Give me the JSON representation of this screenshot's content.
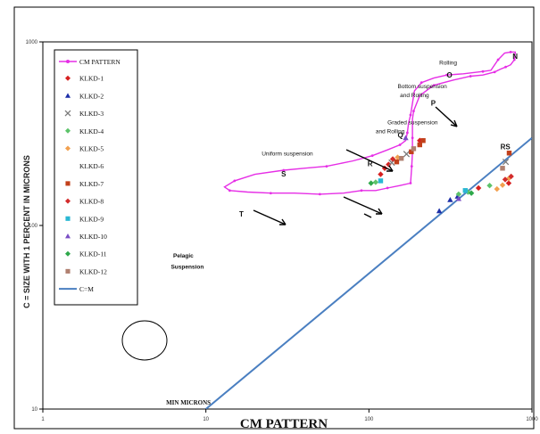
{
  "chart_data": {
    "type": "scatter",
    "xlabel": "CM PATTERN",
    "ylabel": "C = SIZE WITH 1 PERCENT IN MICRONS",
    "x_scale": "log",
    "y_scale": "log",
    "xlim": [
      1,
      1000
    ],
    "ylim": [
      10,
      1000
    ],
    "x_ticks": [
      "1",
      "10",
      "100",
      "1000"
    ],
    "y_ticks": [
      "10",
      "100",
      "1000"
    ],
    "legend_position": "top-left",
    "colors": {
      "cm_pattern": "#e62ee6",
      "c_eq_m": "#4a7fc1",
      "axis": "#000000"
    },
    "cm_pattern": {
      "name": "CM PATTERN",
      "points": [
        [
          180,
          170
        ],
        [
          155,
          165
        ],
        [
          130,
          160
        ],
        [
          110,
          155
        ],
        [
          90,
          155
        ],
        [
          70,
          150
        ],
        [
          50,
          148
        ],
        [
          35,
          150
        ],
        [
          25,
          150
        ],
        [
          18,
          152
        ],
        [
          14,
          155
        ],
        [
          13,
          162
        ],
        [
          15,
          175
        ],
        [
          20,
          190
        ],
        [
          30,
          200
        ],
        [
          40,
          205
        ],
        [
          55,
          210
        ],
        [
          80,
          225
        ],
        [
          105,
          240
        ],
        [
          130,
          258
        ],
        [
          155,
          275
        ],
        [
          168,
          290
        ],
        [
          172,
          320
        ],
        [
          175,
          360
        ],
        [
          180,
          400
        ],
        [
          190,
          540
        ],
        [
          210,
          600
        ],
        [
          250,
          635
        ],
        [
          300,
          660
        ],
        [
          380,
          670
        ],
        [
          500,
          690
        ],
        [
          560,
          700
        ],
        [
          620,
          800
        ],
        [
          680,
          870
        ],
        [
          740,
          880
        ],
        [
          790,
          880
        ],
        [
          780,
          800
        ],
        [
          740,
          750
        ],
        [
          690,
          730
        ],
        [
          640,
          710
        ],
        [
          590,
          685
        ],
        [
          500,
          660
        ],
        [
          420,
          650
        ],
        [
          330,
          620
        ],
        [
          250,
          580
        ],
        [
          205,
          510
        ],
        [
          188,
          420
        ],
        [
          185,
          380
        ],
        [
          185,
          300
        ],
        [
          185,
          250
        ],
        [
          183,
          210
        ],
        [
          180,
          170
        ]
      ]
    },
    "c_eq_m": {
      "name": "C=M",
      "points": [
        [
          10,
          10
        ],
        [
          1000,
          300
        ]
      ]
    },
    "series": [
      {
        "name": "KLKD-1",
        "marker": "diamond",
        "color": "#d62020",
        "points": [
          [
            118,
            190
          ],
          [
            125,
            205
          ],
          [
            132,
            215
          ],
          [
            205,
            290
          ],
          [
            470,
            160
          ],
          [
            720,
            170
          ]
        ]
      },
      {
        "name": "KLKD-2",
        "marker": "triangle",
        "color": "#1d2fa8",
        "points": [
          [
            270,
            120
          ],
          [
            315,
            138
          ],
          [
            350,
            144
          ]
        ]
      },
      {
        "name": "KLKD-3",
        "marker": "x",
        "color": "#7a7a7a",
        "points": [
          [
            138,
            220
          ],
          [
            170,
            245
          ],
          [
            690,
            222
          ]
        ]
      },
      {
        "name": "KLKD-4",
        "marker": "diamond",
        "color": "#5dc36a",
        "points": [
          [
            110,
            172
          ],
          [
            355,
            148
          ],
          [
            405,
            152
          ],
          [
            550,
            165
          ]
        ]
      },
      {
        "name": "KLKD-5",
        "marker": "diamond",
        "color": "#f2a04f",
        "points": [
          [
            150,
            235
          ],
          [
            610,
            158
          ],
          [
            660,
            166
          ],
          [
            720,
            180
          ]
        ]
      },
      {
        "name": "KLKD-6",
        "marker": "none",
        "color": "#ffffff",
        "points": []
      },
      {
        "name": "KLKD-7",
        "marker": "square",
        "color": "#c2401b",
        "points": [
          [
            148,
            222
          ],
          [
            182,
            252
          ],
          [
            205,
            275
          ],
          [
            215,
            290
          ],
          [
            725,
            248
          ]
        ]
      },
      {
        "name": "KLKD-8",
        "marker": "diamond",
        "color": "#d32c2c",
        "points": [
          [
            140,
            230
          ],
          [
            685,
            178
          ],
          [
            745,
            185
          ]
        ]
      },
      {
        "name": "KLKD-9",
        "marker": "square",
        "color": "#2ab7d3",
        "points": [
          [
            118,
            175
          ],
          [
            390,
            155
          ]
        ]
      },
      {
        "name": "KLKD-10",
        "marker": "triangle",
        "color": "#7a4ec4",
        "points": [
          [
            168,
            300
          ],
          [
            355,
            140
          ]
        ]
      },
      {
        "name": "KLKD-11",
        "marker": "diamond",
        "color": "#2ea84a",
        "points": [
          [
            103,
            170
          ],
          [
            425,
            150
          ]
        ]
      },
      {
        "name": "KLKD-12",
        "marker": "square",
        "color": "#b08070",
        "points": [
          [
            158,
            232
          ],
          [
            188,
            262
          ],
          [
            660,
            205
          ]
        ]
      }
    ],
    "annotations": [
      {
        "text": "Rolling",
        "x": 270,
        "y": 750
      },
      {
        "text": "N",
        "x": 760,
        "y": 810
      },
      {
        "text": "O",
        "x": 300,
        "y": 640
      },
      {
        "text": "P",
        "x": 240,
        "y": 450
      },
      {
        "text": "Bottom suspension",
        "x": 150,
        "y": 560
      },
      {
        "text": "and Rolling",
        "x": 155,
        "y": 500
      },
      {
        "text": "Graded suspension",
        "x": 130,
        "y": 355
      },
      {
        "text": "and Rolling",
        "x": 110,
        "y": 318
      },
      {
        "text": "Q",
        "x": 150,
        "y": 300
      },
      {
        "text": "R",
        "x": 98,
        "y": 210
      },
      {
        "text": "Uniform suspension",
        "x": 22,
        "y": 240
      },
      {
        "text": "S",
        "x": 29,
        "y": 185
      },
      {
        "text": "RS",
        "x": 640,
        "y": 260
      },
      {
        "text": "T",
        "x": 16,
        "y": 112
      },
      {
        "text": "Pelagic",
        "x": 6.3,
        "y": 67
      },
      {
        "text": "Suspension",
        "x": 6.1,
        "y": 58
      },
      {
        "text": "MIN MICRONS",
        "x": 5.7,
        "y": 10.6
      }
    ]
  }
}
